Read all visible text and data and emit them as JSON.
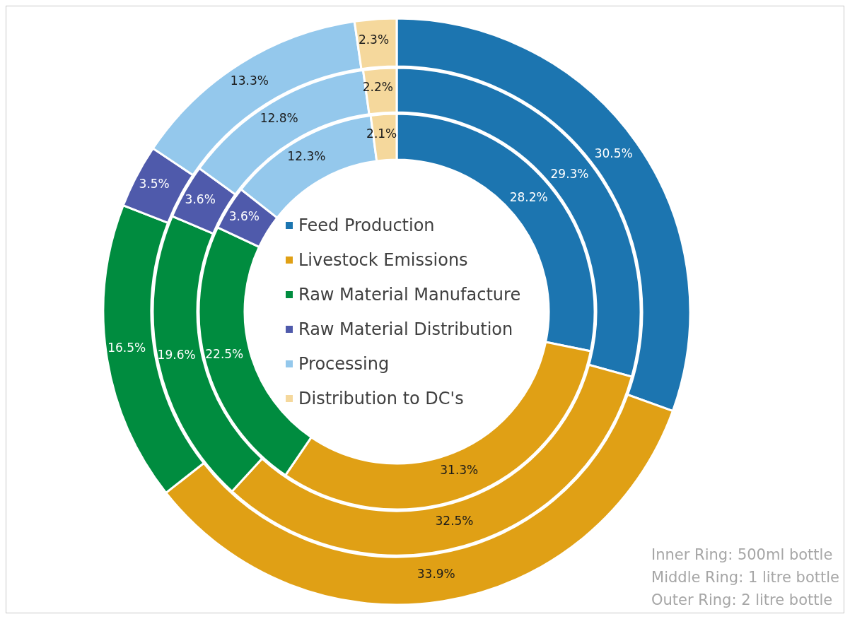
{
  "chart_data": {
    "type": "donut",
    "categories": [
      "Feed Production",
      "Livestock Emissions",
      "Raw Material Manufacture",
      "Raw Material Distribution",
      "Processing",
      "Distribution to DC's"
    ],
    "colors": [
      "#1c75b0",
      "#e0a015",
      "#008c3f",
      "#4f5aab",
      "#94c8ec",
      "#f5d89c"
    ],
    "series": [
      {
        "values": [
          28.2,
          31.3,
          22.5,
          3.6,
          12.3,
          2.1
        ],
        "value_labels": [
          "28.2%",
          "31.3%",
          "22.5%",
          "3.6%",
          "12.3%",
          "2.1%"
        ]
      },
      {
        "values": [
          29.3,
          32.5,
          19.6,
          3.6,
          12.8,
          2.2
        ],
        "value_labels": [
          "29.3%",
          "32.5%",
          "19.6%",
          "3.6%",
          "12.8%",
          "2.2%"
        ]
      },
      {
        "values": [
          30.5,
          33.9,
          16.5,
          3.5,
          13.3,
          2.3
        ],
        "value_labels": [
          "30.5%",
          "33.9%",
          "16.5%",
          "3.5%",
          "13.3%",
          "2.3%"
        ]
      }
    ],
    "legend": "center",
    "annotations": [
      "Inner Ring: 500ml bottle",
      "Middle Ring: 1 litre bottle",
      "Outer Ring: 2 litre bottle"
    ]
  }
}
